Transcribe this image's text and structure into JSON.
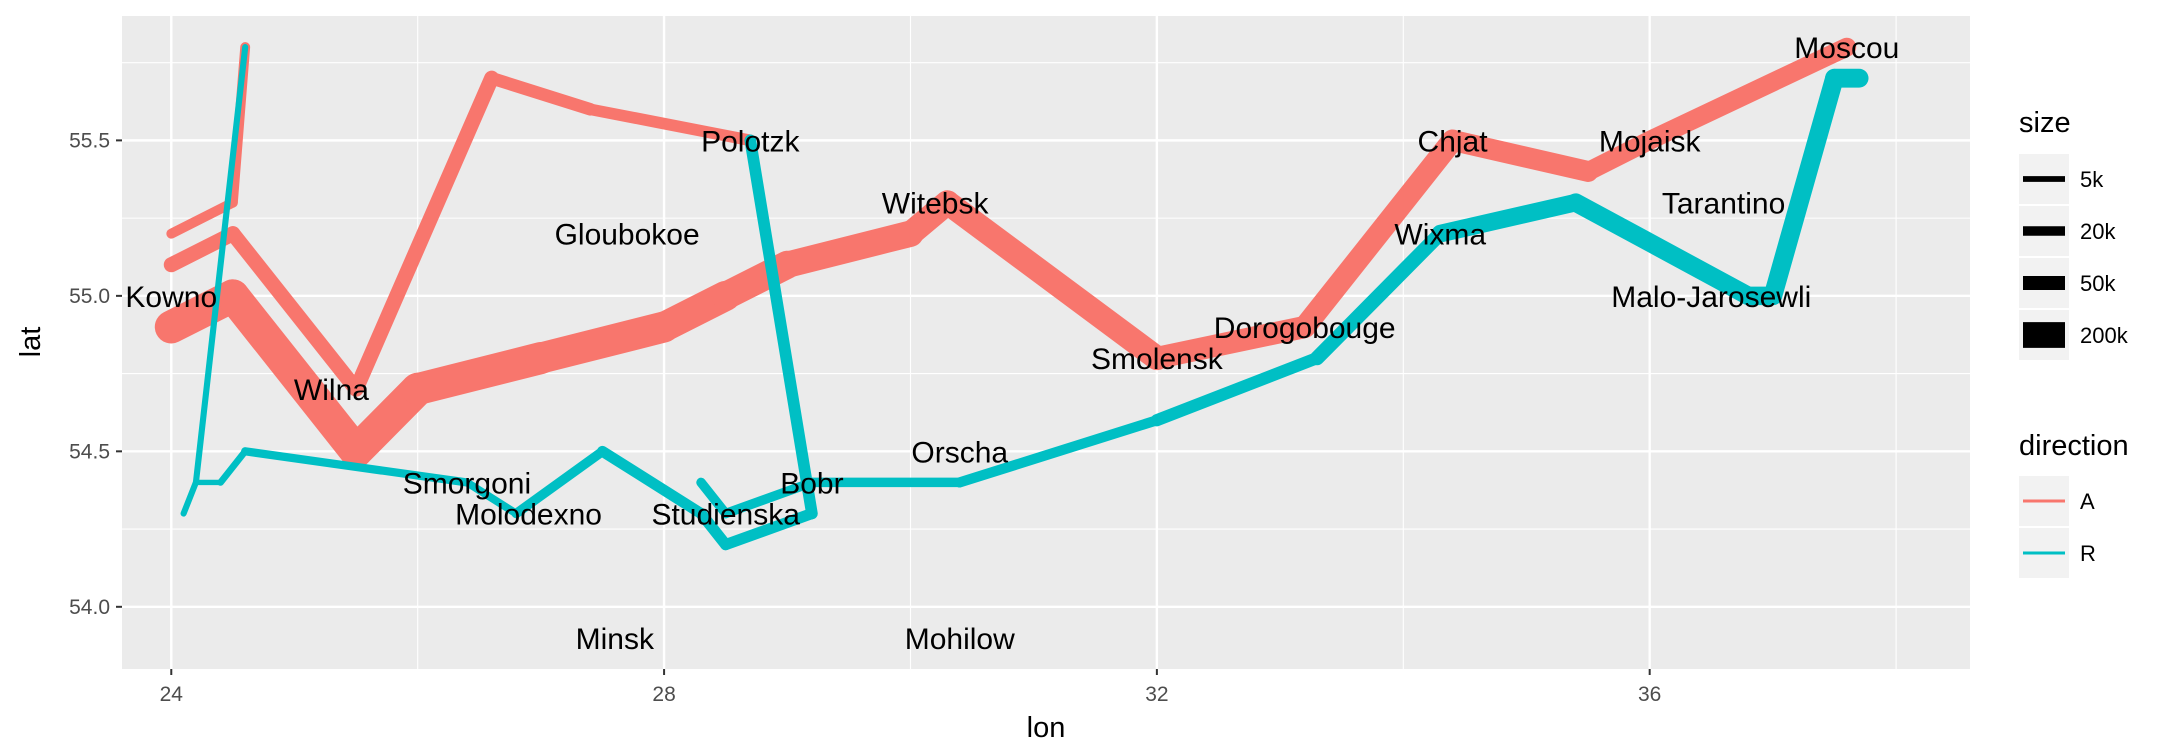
{
  "chart_data": {
    "type": "line",
    "title": "",
    "xlabel": "lon",
    "ylabel": "lat",
    "xlim": [
      23.6,
      38.6
    ],
    "ylim": [
      53.8,
      55.9
    ],
    "x_ticks": [
      24,
      28,
      32,
      36
    ],
    "x_tick_labels": [
      "24",
      "28",
      "32",
      "36"
    ],
    "y_ticks": [
      54.0,
      54.5,
      55.0,
      55.5
    ],
    "y_tick_labels": [
      "54.0",
      "54.5",
      "55.0",
      "55.5"
    ],
    "grid": true,
    "size_legend": {
      "title": "size",
      "entries": [
        {
          "label": "5k",
          "value": 5000
        },
        {
          "label": "20k",
          "value": 20000
        },
        {
          "label": "50k",
          "value": 50000
        },
        {
          "label": "200k",
          "value": 200000
        }
      ]
    },
    "color_legend": {
      "title": "direction",
      "placement": "right",
      "entries": [
        {
          "label": "A",
          "color": "#F8766D"
        },
        {
          "label": "R",
          "color": "#00BFC4"
        }
      ]
    },
    "series": [
      {
        "direction": "A",
        "group": 1,
        "color": "#F8766D",
        "points": [
          {
            "lon": 24.0,
            "lat": 54.9,
            "size": 340000
          },
          {
            "lon": 24.5,
            "lat": 55.0,
            "size": 340000
          },
          {
            "lon": 25.5,
            "lat": 54.5,
            "size": 340000
          },
          {
            "lon": 26.0,
            "lat": 54.7,
            "size": 320000
          },
          {
            "lon": 27.0,
            "lat": 54.8,
            "size": 300000
          },
          {
            "lon": 28.0,
            "lat": 54.9,
            "size": 280000
          },
          {
            "lon": 28.5,
            "lat": 55.0,
            "size": 240000
          },
          {
            "lon": 29.0,
            "lat": 55.1,
            "size": 210000
          },
          {
            "lon": 30.0,
            "lat": 55.2,
            "size": 180000
          },
          {
            "lon": 30.3,
            "lat": 55.3,
            "size": 175000
          },
          {
            "lon": 32.0,
            "lat": 54.8,
            "size": 145000
          },
          {
            "lon": 33.2,
            "lat": 54.9,
            "size": 140000
          },
          {
            "lon": 34.4,
            "lat": 55.5,
            "size": 127100
          },
          {
            "lon": 35.5,
            "lat": 55.4,
            "size": 100000
          },
          {
            "lon": 36.0,
            "lat": 55.5,
            "size": 100000
          },
          {
            "lon": 37.6,
            "lat": 55.8,
            "size": 100000
          }
        ]
      },
      {
        "direction": "R",
        "group": 1,
        "color": "#00BFC4",
        "points": [
          {
            "lon": 37.7,
            "lat": 55.7,
            "size": 100000
          },
          {
            "lon": 37.5,
            "lat": 55.7,
            "size": 98000
          },
          {
            "lon": 37.0,
            "lat": 55.0,
            "size": 97000
          },
          {
            "lon": 36.8,
            "lat": 55.0,
            "size": 96000
          },
          {
            "lon": 35.4,
            "lat": 55.3,
            "size": 87000
          },
          {
            "lon": 34.3,
            "lat": 55.2,
            "size": 55000
          },
          {
            "lon": 33.3,
            "lat": 54.8,
            "size": 37000
          },
          {
            "lon": 32.0,
            "lat": 54.6,
            "size": 24000
          },
          {
            "lon": 30.4,
            "lat": 54.4,
            "size": 20000
          },
          {
            "lon": 29.2,
            "lat": 54.4,
            "size": 20000
          },
          {
            "lon": 28.5,
            "lat": 54.3,
            "size": 20000
          },
          {
            "lon": 28.3,
            "lat": 54.4,
            "size": 20000
          }
        ]
      },
      {
        "direction": "A",
        "group": 2,
        "color": "#F8766D",
        "points": [
          {
            "lon": 24.0,
            "lat": 55.1,
            "size": 60000
          },
          {
            "lon": 24.5,
            "lat": 55.2,
            "size": 60000
          },
          {
            "lon": 25.5,
            "lat": 54.7,
            "size": 60000
          },
          {
            "lon": 26.6,
            "lat": 55.7,
            "size": 40000
          },
          {
            "lon": 27.4,
            "lat": 55.6,
            "size": 33000
          },
          {
            "lon": 28.7,
            "lat": 55.5,
            "size": 33000
          }
        ]
      },
      {
        "direction": "R",
        "group": 2,
        "color": "#00BFC4",
        "points": [
          {
            "lon": 28.7,
            "lat": 55.5,
            "size": 33000
          },
          {
            "lon": 29.2,
            "lat": 54.3,
            "size": 30000
          },
          {
            "lon": 28.5,
            "lat": 54.2,
            "size": 30000
          },
          {
            "lon": 28.3,
            "lat": 54.3,
            "size": 28000
          },
          {
            "lon": 27.5,
            "lat": 54.5,
            "size": 20000
          },
          {
            "lon": 26.8,
            "lat": 54.3,
            "size": 12000
          },
          {
            "lon": 26.4,
            "lat": 54.4,
            "size": 14000
          },
          {
            "lon": 24.6,
            "lat": 54.5,
            "size": 8000
          },
          {
            "lon": 24.4,
            "lat": 54.4,
            "size": 4000
          },
          {
            "lon": 24.2,
            "lat": 54.4,
            "size": 4000
          },
          {
            "lon": 24.1,
            "lat": 54.3,
            "size": 4000
          }
        ]
      },
      {
        "direction": "A",
        "group": 3,
        "color": "#F8766D",
        "points": [
          {
            "lon": 24.0,
            "lat": 55.2,
            "size": 22000
          },
          {
            "lon": 24.5,
            "lat": 55.3,
            "size": 22000
          },
          {
            "lon": 24.6,
            "lat": 55.8,
            "size": 6000
          }
        ]
      },
      {
        "direction": "R",
        "group": 3,
        "color": "#00BFC4",
        "points": [
          {
            "lon": 24.6,
            "lat": 55.8,
            "size": 6000
          },
          {
            "lon": 24.2,
            "lat": 54.4,
            "size": 6000
          },
          {
            "lon": 24.1,
            "lat": 54.3,
            "size": 6000
          }
        ]
      }
    ],
    "cities": [
      {
        "name": "Kowno",
        "lon": 24.0,
        "lat": 55.0
      },
      {
        "name": "Wilna",
        "lon": 25.3,
        "lat": 54.7
      },
      {
        "name": "Smorgoni",
        "lon": 26.4,
        "lat": 54.4
      },
      {
        "name": "Molodexno",
        "lon": 26.9,
        "lat": 54.3
      },
      {
        "name": "Gloubokoe",
        "lon": 27.7,
        "lat": 55.2
      },
      {
        "name": "Minsk",
        "lon": 27.6,
        "lat": 53.9
      },
      {
        "name": "Studienska",
        "lon": 28.5,
        "lat": 54.3
      },
      {
        "name": "Polotzk",
        "lon": 28.7,
        "lat": 55.5
      },
      {
        "name": "Bobr",
        "lon": 29.2,
        "lat": 54.4
      },
      {
        "name": "Witebsk",
        "lon": 30.2,
        "lat": 55.3
      },
      {
        "name": "Orscha",
        "lon": 30.4,
        "lat": 54.5
      },
      {
        "name": "Mohilow",
        "lon": 30.4,
        "lat": 53.9
      },
      {
        "name": "Smolensk",
        "lon": 32.0,
        "lat": 54.8
      },
      {
        "name": "Dorogobouge",
        "lon": 33.2,
        "lat": 54.9
      },
      {
        "name": "Wixma",
        "lon": 34.3,
        "lat": 55.2
      },
      {
        "name": "Chjat",
        "lon": 34.4,
        "lat": 55.5
      },
      {
        "name": "Mojaisk",
        "lon": 36.0,
        "lat": 55.5
      },
      {
        "name": "Moscou",
        "lon": 37.6,
        "lat": 55.8
      },
      {
        "name": "Tarantino",
        "lon": 36.6,
        "lat": 55.3
      },
      {
        "name": "Malo-Jarosewli",
        "lon": 36.5,
        "lat": 55.0
      }
    ]
  }
}
